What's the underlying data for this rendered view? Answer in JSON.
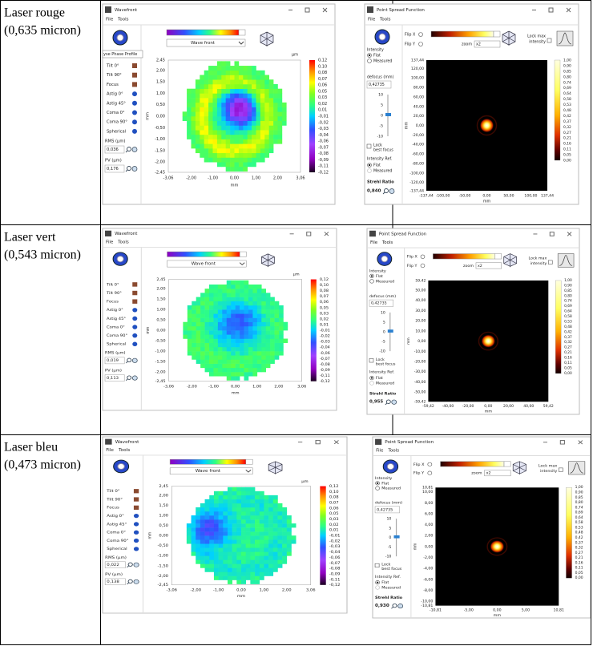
{
  "table": {
    "rows": [
      {
        "label": "Laser rouge",
        "wavelength": "(0,635 micron)",
        "wavefront": {
          "tooltip": "yse Phase Profile",
          "rms": "0,036",
          "pv": "0,176"
        },
        "psf": {
          "strehl": "0,840",
          "yticks": [
            "137,44",
            "120,00",
            "100,00",
            "80,00",
            "60,00",
            "40,00",
            "20,00",
            "0,00",
            "-20,00",
            "-40,00",
            "-60,00",
            "-80,00",
            "-100,00",
            "-120,00",
            "-137,44"
          ],
          "xticks": [
            "-137,44",
            "-100,00",
            "-50,00",
            "0,00",
            "50,00",
            "100,00",
            "137,44"
          ]
        }
      },
      {
        "label": "Laser vert",
        "wavelength": "(0,543 micron)",
        "wavefront": {
          "rms": "0,019",
          "pv": "0,113"
        },
        "psf": {
          "strehl": "0,955",
          "yticks": [
            "59,42",
            "50,00",
            "40,00",
            "30,00",
            "20,00",
            "10,00",
            "0,00",
            "-10,00",
            "-20,00",
            "-30,00",
            "-40,00",
            "-50,00",
            "-59,42"
          ],
          "xticks": [
            "-59,42",
            "-40,00",
            "-20,00",
            "0,00",
            "20,00",
            "40,00",
            "59,42"
          ]
        }
      },
      {
        "label": "Laser bleu",
        "wavelength": "(0,473 micron)",
        "wavefront": {
          "rms": "0,022",
          "pv": "0,138"
        },
        "psf": {
          "strehl": "0,930",
          "yticks": [
            "10,81",
            "10,00",
            "8,00",
            "6,00",
            "4,00",
            "2,00",
            "0,00",
            "-2,00",
            "-4,00",
            "-6,00",
            "-8,00",
            "-10,00",
            "-10,81"
          ],
          "xticks": [
            "-10,81",
            "-5,00",
            "0,00",
            "5,00",
            "10,81"
          ]
        }
      }
    ]
  },
  "wavefront_window": {
    "title": "Wavefront",
    "menu": [
      "File",
      "Tools"
    ],
    "colormap": "Wave front",
    "buttons": [
      "Tilt 0°",
      "Tilt 90°",
      "Focus",
      "Astig 0°",
      "Astig 45°",
      "Coma 0°",
      "Coma 90°",
      "Spherical"
    ],
    "rms_label": "RMS (µm)",
    "pv_label": "PV (µm)",
    "unit": "µm",
    "xlabel": "mm",
    "ylabel": "mm",
    "xticks": [
      "-3,06",
      "-2,00",
      "-1,00",
      "0,00",
      "1,00",
      "2,00",
      "3,06"
    ],
    "yticks": [
      "2,45",
      "2,00",
      "1,50",
      "1,00",
      "0,50",
      "0,00",
      "-0,50",
      "-1,00",
      "-1,50",
      "-2,00",
      "-2,45"
    ],
    "colorbar_ticks": [
      "0,12",
      "0,10",
      "0,08",
      "0,07",
      "0,06",
      "0,05",
      "0,03",
      "0,02",
      "0,01",
      "-0,01",
      "-0,02",
      "-0,03",
      "-0,04",
      "-0,06",
      "-0,07",
      "-0,08",
      "-0,09",
      "-0,11",
      "-0,12"
    ]
  },
  "psf_window": {
    "title": "Point Spread Function",
    "menu": [
      "File",
      "Tools"
    ],
    "flip_x": "Flip X",
    "flip_y": "Flip Y",
    "zoom": "zoom",
    "zoom_value": "x2",
    "lock_max": [
      "Lock max",
      "intensity"
    ],
    "intensity": "Intensity",
    "flat": "Flat",
    "measured": "Measured",
    "defocus_label": "defocus (mm)",
    "defocus": "0,42735",
    "slider_ticks": [
      "10",
      "5",
      "0",
      "-5",
      "-10"
    ],
    "lock_focus": [
      "Lock",
      "best focus"
    ],
    "intensity_ref": "Intensity Ref.",
    "strehl_label": "Strehl Ratio",
    "xlabel": "mm",
    "ylabel": "mm",
    "colorbar_ticks": [
      "1,00",
      "0,90",
      "0,85",
      "0,80",
      "0,74",
      "0,69",
      "0,64",
      "0,58",
      "0,53",
      "0,48",
      "0,42",
      "0,37",
      "0,32",
      "0,27",
      "0,21",
      "0,16",
      "0,11",
      "0,05",
      "0,00"
    ]
  }
}
